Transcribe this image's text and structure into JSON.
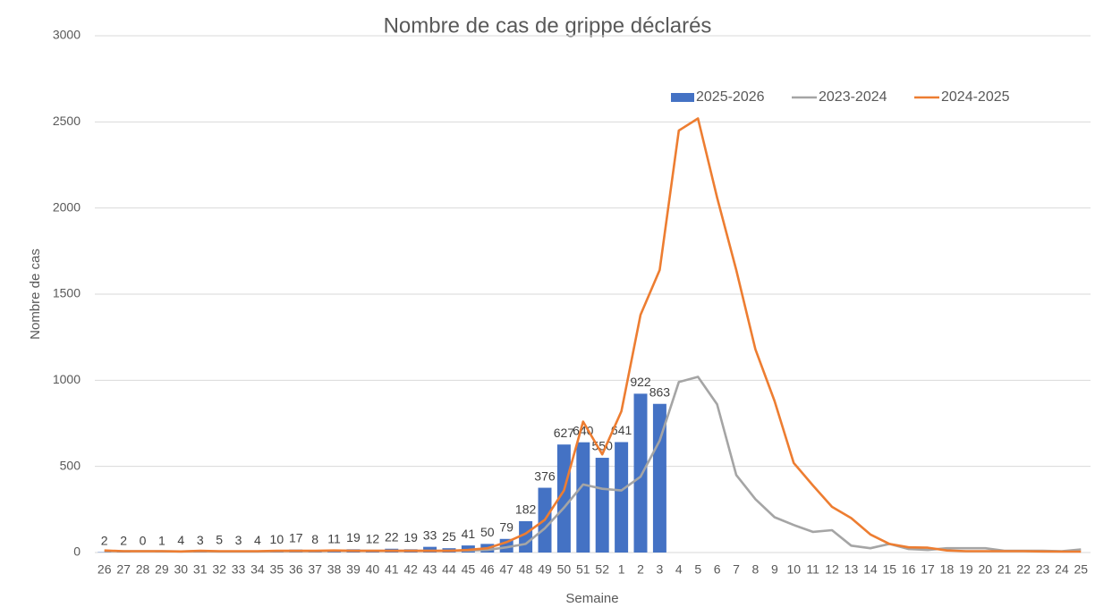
{
  "chart_data": {
    "type": "bar",
    "title": "Nombre de cas de grippe déclarés",
    "x_label": "Semaine",
    "y_label": "Nombre de cas",
    "categories": [
      "26",
      "27",
      "28",
      "29",
      "30",
      "31",
      "32",
      "33",
      "34",
      "35",
      "36",
      "37",
      "38",
      "39",
      "40",
      "41",
      "42",
      "43",
      "44",
      "45",
      "46",
      "47",
      "48",
      "49",
      "50",
      "51",
      "52",
      "1",
      "2",
      "3",
      "4",
      "5",
      "6",
      "7",
      "8",
      "9",
      "10",
      "11",
      "12",
      "13",
      "14",
      "15",
      "16",
      "17",
      "18",
      "19",
      "20",
      "21",
      "22",
      "23",
      "24",
      "25"
    ],
    "series": [
      {
        "name": "2025-2026",
        "type": "bar",
        "color": "#4472c4",
        "data_labels": true,
        "values": [
          2,
          2,
          0,
          1,
          4,
          3,
          5,
          3,
          4,
          10,
          17,
          8,
          11,
          19,
          12,
          22,
          19,
          33,
          25,
          41,
          50,
          79,
          182,
          376,
          627,
          640,
          550,
          641,
          922,
          863,
          null,
          null,
          null,
          null,
          null,
          null,
          null,
          null,
          null,
          null,
          null,
          null,
          null,
          null,
          null,
          null,
          null,
          null,
          null,
          null,
          null,
          null
        ]
      },
      {
        "name": "2023-2024",
        "type": "line",
        "color": "#a5a5a5",
        "values": [
          8,
          8,
          8,
          8,
          6,
          8,
          6,
          6,
          6,
          8,
          8,
          8,
          10,
          10,
          10,
          10,
          10,
          10,
          10,
          12,
          15,
          30,
          50,
          140,
          260,
          395,
          370,
          360,
          440,
          650,
          990,
          1020,
          860,
          450,
          310,
          205,
          160,
          120,
          130,
          40,
          25,
          50,
          20,
          15,
          25,
          25,
          25,
          10,
          10,
          10,
          8,
          18
        ]
      },
      {
        "name": "2024-2025",
        "type": "line",
        "color": "#ed7d31",
        "values": [
          12,
          8,
          8,
          8,
          6,
          10,
          8,
          8,
          8,
          10,
          10,
          10,
          12,
          10,
          10,
          10,
          10,
          10,
          10,
          15,
          25,
          60,
          110,
          190,
          360,
          760,
          570,
          820,
          1380,
          1640,
          2450,
          2520,
          2060,
          1640,
          1180,
          880,
          520,
          390,
          265,
          200,
          105,
          50,
          30,
          28,
          12,
          8,
          8,
          8,
          8,
          6,
          5,
          5
        ]
      }
    ],
    "ylim": [
      0,
      3000
    ],
    "yticks": [
      0,
      500,
      1000,
      1500,
      2000,
      2500,
      3000
    ],
    "grid": true
  }
}
